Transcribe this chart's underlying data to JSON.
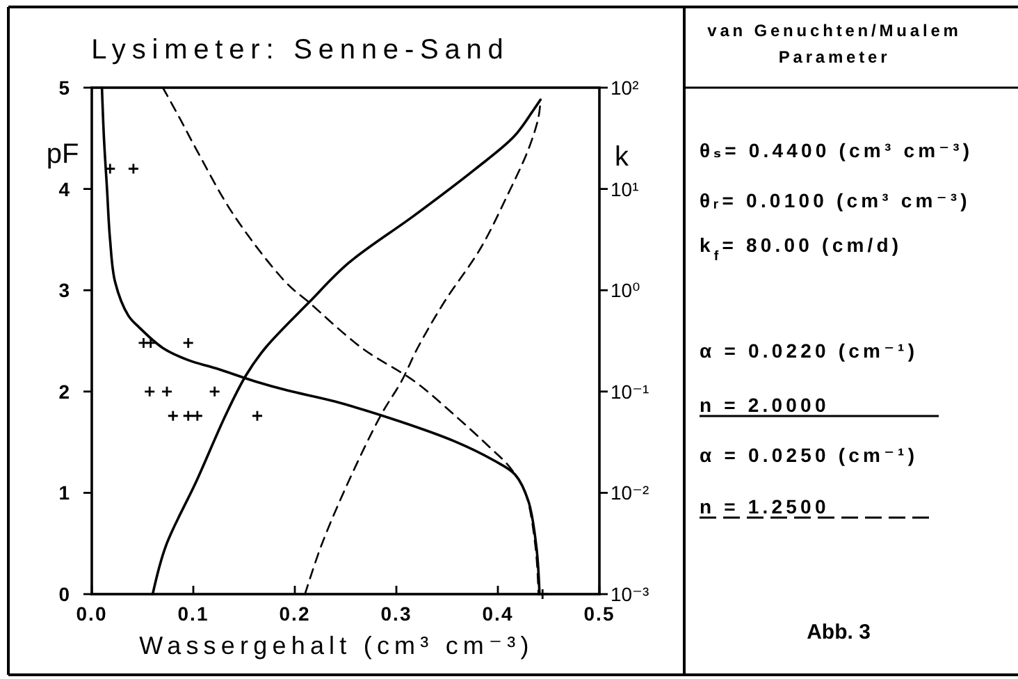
{
  "chart_data": [
    {
      "type": "line",
      "title": "Lysimeter: Senne-Sand",
      "xlabel": "Wassergehalt (cm³ cm⁻³)",
      "ylabel": "pF",
      "y2label": "k",
      "xlim": [
        0,
        0.5
      ],
      "xticks": [
        {
          "value": 0,
          "label": "0.0"
        },
        0.1,
        0.2,
        0.3,
        0.4,
        0.5
      ],
      "ylim": [
        0,
        5
      ],
      "yticks": [
        0,
        1,
        2,
        3,
        4,
        5
      ],
      "y2lim": [
        0.001,
        100
      ],
      "y2ticks": [
        {
          "value": 100,
          "label": "10²"
        },
        {
          "value": 10,
          "label": "10¹"
        },
        {
          "value": 1,
          "label": "10⁰"
        },
        {
          "value": 0.1,
          "label": "10⁻¹"
        },
        {
          "value": 0.01,
          "label": "10⁻²"
        },
        {
          "value": 0.001,
          "label": "10⁻³"
        }
      ],
      "log": "y2",
      "series": [
        {
          "type": "line",
          "color": "#000000",
          "line_style": "solid",
          "x": [
            0.01,
            0.012,
            0.015,
            0.018,
            0.023,
            0.036,
            0.046,
            0.07,
            0.095,
            0.122,
            0.161,
            0.193,
            0.24,
            0.305,
            0.357,
            0.396,
            0.417,
            0.43,
            0.438,
            0.441
          ],
          "values": [
            5.0,
            4.5,
            4.0,
            3.5,
            3.08,
            2.75,
            2.64,
            2.43,
            2.31,
            2.23,
            2.1,
            2.01,
            1.9,
            1.7,
            1.51,
            1.32,
            1.18,
            0.92,
            0.46,
            0
          ]
        },
        {
          "type": "line",
          "color": "#000000",
          "line_style": "dashed",
          "x": [
            0.07,
            0.086,
            0.103,
            0.14,
            0.191,
            0.214,
            0.266,
            0.318,
            0.357,
            0.393,
            0.412,
            0.427,
            0.437,
            0.44
          ],
          "values": [
            5.0,
            4.71,
            4.39,
            3.74,
            3.08,
            2.88,
            2.43,
            2.1,
            1.77,
            1.44,
            1.25,
            1.0,
            0.47,
            0
          ]
        },
        {
          "type": "line",
          "axis": "y2",
          "color": "#000000",
          "line_style": "solid",
          "x": [
            0.06,
            0.073,
            0.103,
            0.132,
            0.152,
            0.171,
            0.214,
            0.253,
            0.318,
            0.377,
            0.416,
            0.435,
            0.442
          ],
          "values": [
            0.001,
            0.003,
            0.013,
            0.059,
            0.145,
            0.27,
            0.76,
            1.86,
            5.5,
            15.5,
            33,
            60,
            76
          ]
        },
        {
          "type": "line",
          "axis": "y2",
          "color": "#000000",
          "line_style": "dashed",
          "x": [
            0.21,
            0.226,
            0.253,
            0.285,
            0.305,
            0.321,
            0.347,
            0.383,
            0.409,
            0.43,
            0.44,
            0.442
          ],
          "values": [
            0.001,
            0.003,
            0.013,
            0.059,
            0.126,
            0.27,
            0.76,
            2.6,
            8.5,
            24.5,
            51,
            76
          ]
        },
        {
          "type": "scatter",
          "color": "#000000",
          "marker": "cross",
          "x": [
            0.018,
            0.041,
            0.051,
            0.058,
            0.095,
            0.057,
            0.074,
            0.121,
            0.08,
            0.095,
            0.104,
            0.163,
            0.444
          ],
          "values": [
            4.2,
            4.2,
            2.48,
            2.48,
            2.48,
            2.0,
            2.0,
            2.0,
            1.76,
            1.76,
            1.76,
            1.76,
            0
          ]
        }
      ]
    },
    {
      "type": "other",
      "title": "van Genuchten/Mualem Parameter",
      "annotations": [
        "θₛ= 0.4400 (cm³ cm⁻³)",
        "θᵣ= 0.0100 (cm³ cm⁻³)",
        "k$_{f}$= 80.00 (cm/d)",
        "α = 0.0220 (cm⁻¹)",
        "n = 2.0000",
        "α = 0.0250 (cm⁻¹)",
        "n = 1.2500",
        "Abb. 3"
      ]
    }
  ]
}
